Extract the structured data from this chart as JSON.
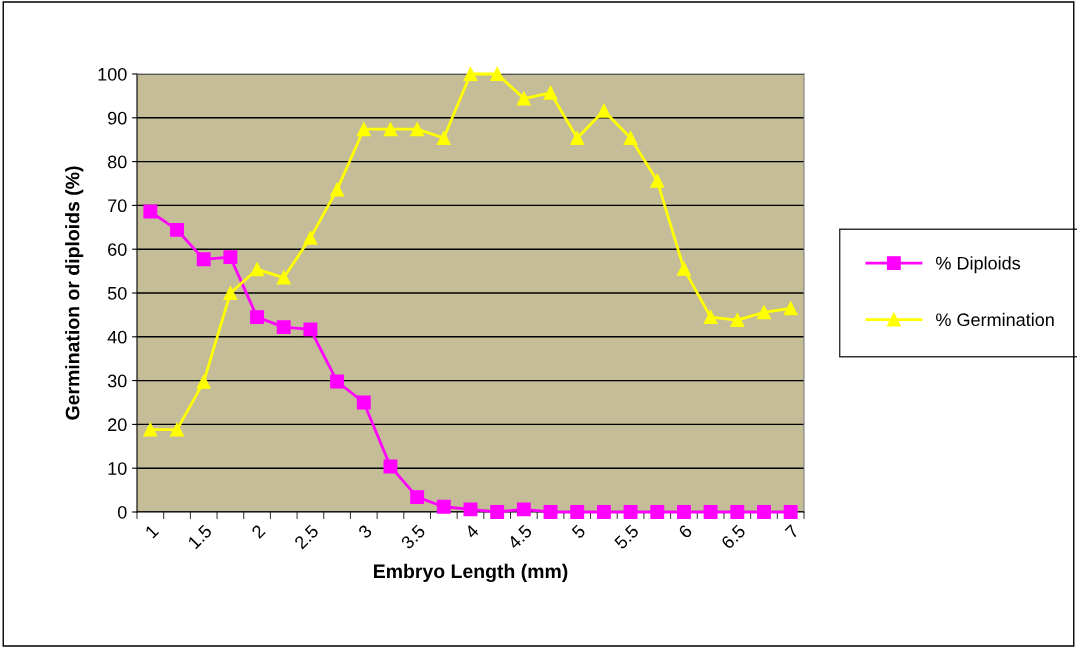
{
  "chart_data": {
    "type": "line",
    "xlabel": "Embryo Length (mm)",
    "ylabel": "Germination or diploids (%)",
    "categories": [
      "1",
      null,
      "1.5",
      null,
      "2",
      null,
      "2.5",
      null,
      "3",
      null,
      "3.5",
      null,
      "4",
      null,
      "4.5",
      null,
      "5",
      null,
      "5.5",
      null,
      "6",
      null,
      "6.5",
      null,
      "7"
    ],
    "series": [
      {
        "name": "% Diploids",
        "color": "#ff00ff",
        "marker": "square",
        "values": [
          68.6,
          64.4,
          57.7,
          58.2,
          44.5,
          42.2,
          41.7,
          29.8,
          25,
          10.4,
          3.4,
          1.2,
          0.6,
          0,
          0.6,
          0,
          0,
          0,
          0,
          0,
          0,
          0,
          0,
          0,
          0
        ]
      },
      {
        "name": "% Germination",
        "color": "#ffff00",
        "marker": "triangle",
        "values": [
          18.8,
          18.8,
          29.7,
          50,
          55.4,
          53.5,
          62.6,
          73.6,
          87.4,
          87.4,
          87.4,
          85.4,
          100,
          100,
          94.4,
          95.7,
          85.4,
          91.6,
          85.4,
          75.6,
          55.5,
          44.5,
          43.8,
          45.6,
          46.5
        ]
      }
    ],
    "ylim": [
      0,
      100
    ],
    "yticks": [
      0,
      10,
      20,
      30,
      40,
      50,
      60,
      70,
      80,
      90,
      100
    ],
    "grid": "y",
    "legend": "right",
    "line_style": "solid"
  }
}
